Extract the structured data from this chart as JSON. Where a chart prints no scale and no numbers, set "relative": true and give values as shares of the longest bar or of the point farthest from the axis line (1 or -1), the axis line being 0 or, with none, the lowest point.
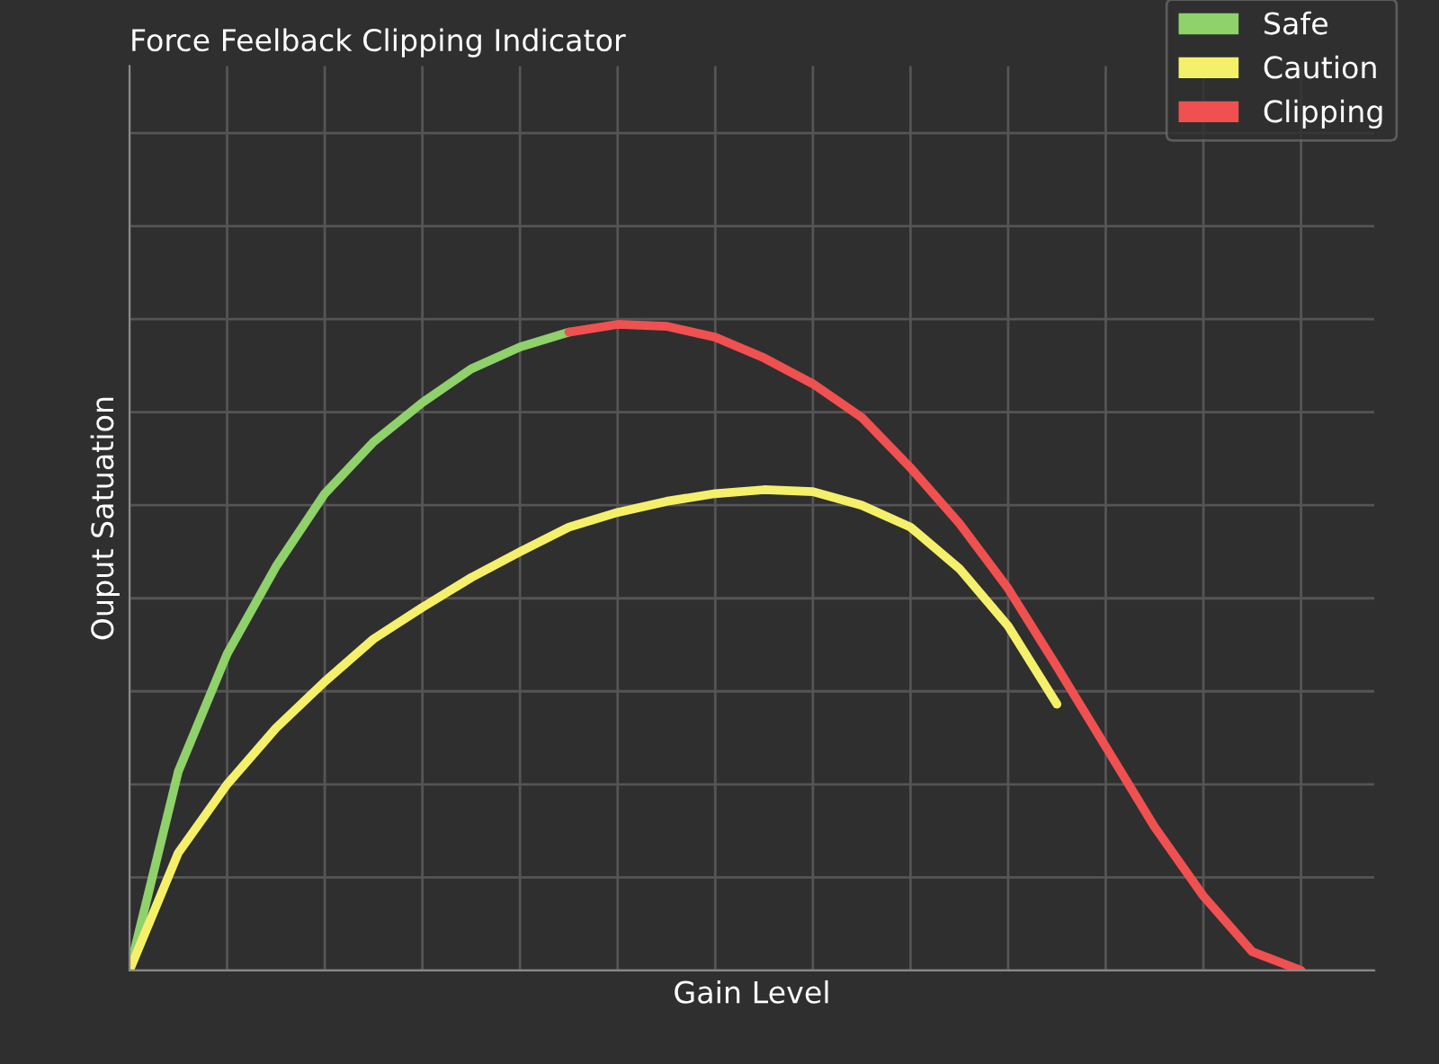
{
  "chart_data": {
    "type": "line",
    "title": "Force Feelback Clipping Indicator",
    "xlabel": "Gain Level",
    "ylabel": "Ouput Satuation",
    "relative": true,
    "grid": true,
    "legend": "top right",
    "marker": "none",
    "line_style": "solid",
    "categories": [
      null,
      null,
      null,
      null,
      null,
      null,
      null,
      null,
      null,
      null,
      null,
      null,
      null,
      null,
      null,
      null,
      null,
      null,
      null,
      null,
      null,
      null,
      null,
      null,
      null
    ],
    "series": [
      {
        "name": "Safe",
        "color": "#8fd16a",
        "values": [
          0,
          0.308,
          0.49,
          0.625,
          0.738,
          0.818,
          0.879,
          0.931,
          0.965,
          0.988,
          null,
          null,
          null,
          null,
          null,
          null,
          null,
          null,
          null,
          null,
          null,
          null,
          null,
          null,
          null
        ]
      },
      {
        "name": "Caution",
        "color": "#f5f06a",
        "values": [
          0,
          0.182,
          0.288,
          0.375,
          0.447,
          0.513,
          0.562,
          0.608,
          0.648,
          0.686,
          0.709,
          0.726,
          0.738,
          0.744,
          0.741,
          0.72,
          0.686,
          0.622,
          0.533,
          0.412,
          null,
          null,
          null,
          null,
          null
        ]
      },
      {
        "name": "Clipping",
        "color": "#f05050",
        "values": [
          null,
          null,
          null,
          null,
          null,
          null,
          null,
          null,
          null,
          0.988,
          1.0,
          0.997,
          0.98,
          0.948,
          0.908,
          0.856,
          0.778,
          0.692,
          0.591,
          0.47,
          0.346,
          0.222,
          0.115,
          0.029,
          0
        ]
      }
    ]
  }
}
